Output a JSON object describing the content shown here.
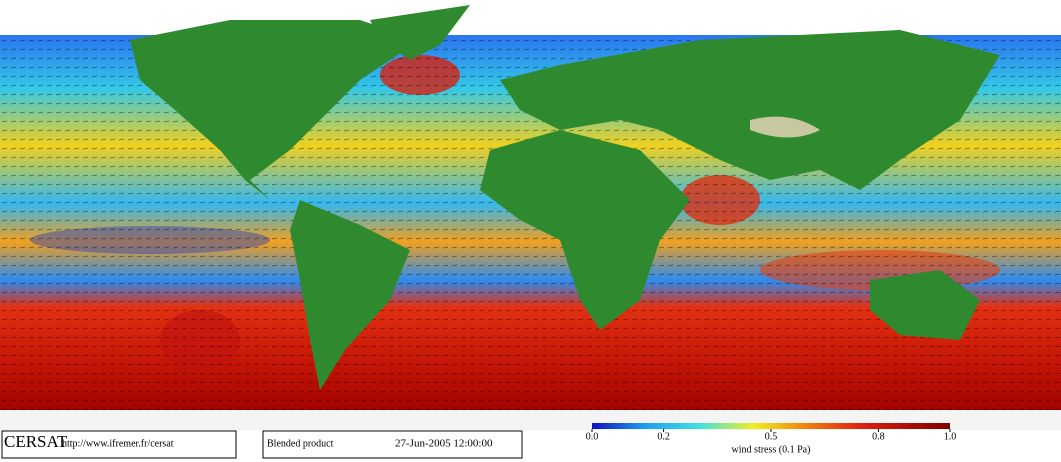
{
  "footer": {
    "logo": "CERSAT",
    "url": "http://www.ifremer.fr/cersat",
    "product": "Blended product",
    "date": "27-Jun-2005 12:00:00"
  },
  "colorbar": {
    "label": "wind stress (0.1 Pa)",
    "lim": [
      0,
      1
    ],
    "ticks": [
      {
        "value": 0,
        "label": "0.0"
      },
      0.2,
      0.5,
      0.8,
      {
        "value": 1,
        "label": "1.0"
      }
    ]
  }
}
